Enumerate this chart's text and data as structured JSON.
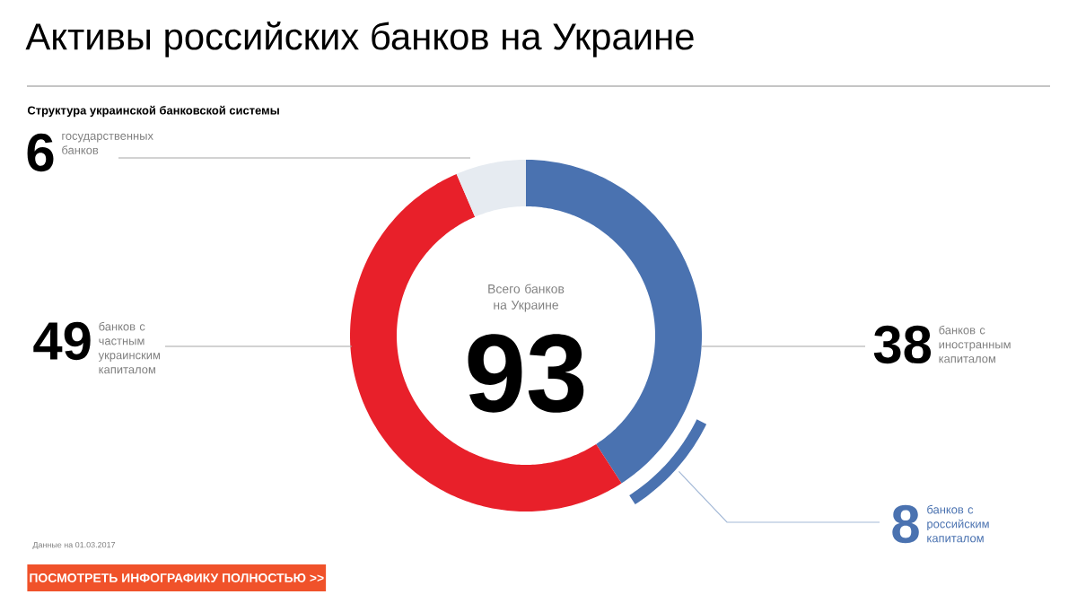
{
  "chart_data": {
    "type": "donut",
    "title": "Активы российских банков на Украине",
    "subtitle": "Структура украинской банковской системы",
    "categories": [
      "банков с иностранным капиталом",
      "банков с частным украинским капиталом",
      "государственных банков"
    ],
    "values": [
      38,
      49,
      6
    ],
    "colors": [
      "#4a72b0",
      "#e8202a",
      "#e6ebf1"
    ],
    "series": [
      {
        "name": "банков с российским капиталом",
        "color": "#4a72b0",
        "values": [
          8,
          null,
          null
        ]
      }
    ],
    "data_labels": true,
    "annotations": [
      "Всего банков на Украине",
      "93",
      "Данные на 01.03.2017",
      "ПОСМОТРЕТЬ ИНФОГРАФИКУ ПОЛНОСТЬЮ   >>"
    ]
  }
}
